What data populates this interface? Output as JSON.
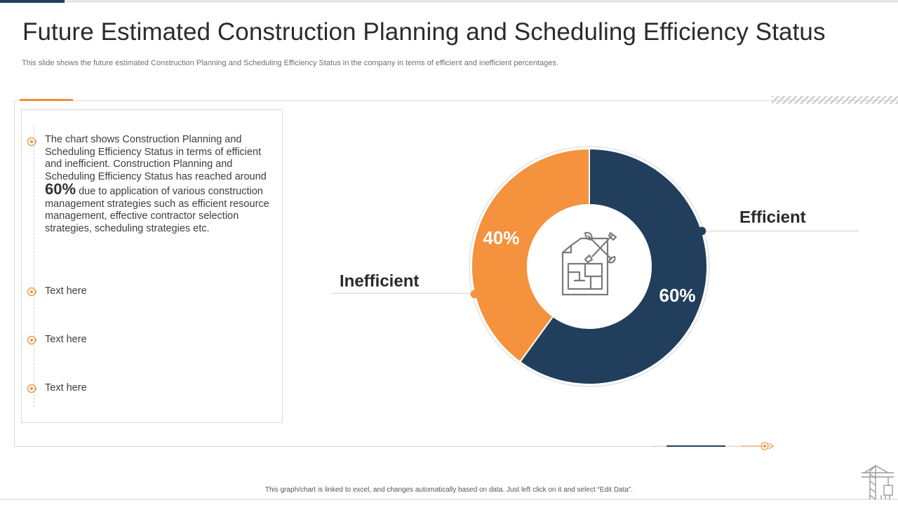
{
  "slide": {
    "title": "Future Estimated Construction Planning and Scheduling Efficiency Status",
    "subtitle": "This slide shows the future estimated Construction Planning and Scheduling Efficiency Status in the company in terms of efficient and inefficient percentages.",
    "footer": "This graph/chart is linked to excel, and changes automatically based on data. Just left click on it and select “Edit Data”."
  },
  "text_panel": {
    "para_before": "The chart shows Construction Planning and Scheduling Efficiency Status in terms of efficient and inefficient. Construction Planning and Scheduling Efficiency Status has reached around",
    "highlight": "60%",
    "para_after": "due to application of various construction management strategies such as efficient resource management, effective contractor selection strategies, scheduling strategies etc.",
    "items": [
      "Text here",
      "Text here",
      "Text here"
    ]
  },
  "colors": {
    "efficient": "#213f5c",
    "inefficient": "#f4923d",
    "accent": "#f0913a",
    "text": "#3a3a3a"
  },
  "icons": {
    "bullet": "target-bullet-icon",
    "center": "blueprint-tools-icon",
    "corner": "crane-icon"
  },
  "chart_data": {
    "type": "pie",
    "donut": true,
    "title": "",
    "categories": [
      "Efficient",
      "Inefficient"
    ],
    "values": [
      60,
      40
    ],
    "labels": [
      "60%",
      "40%"
    ],
    "legend": "callout-labels"
  }
}
